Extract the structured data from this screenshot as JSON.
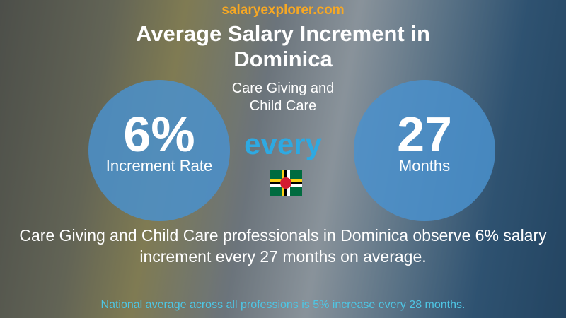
{
  "site": "salaryexplorer.com",
  "title": "Average Salary Increment in Dominica",
  "subtitle": "Care Giving and Child Care",
  "left_circle": {
    "value": "6%",
    "label": "Increment Rate"
  },
  "connector": "every",
  "right_circle": {
    "value": "27",
    "label": "Months"
  },
  "summary": "Care Giving and Child Care professionals in Dominica observe 6% salary increment every 27 months on average.",
  "footer": "National average across all professions is 5% increase every 28 months."
}
